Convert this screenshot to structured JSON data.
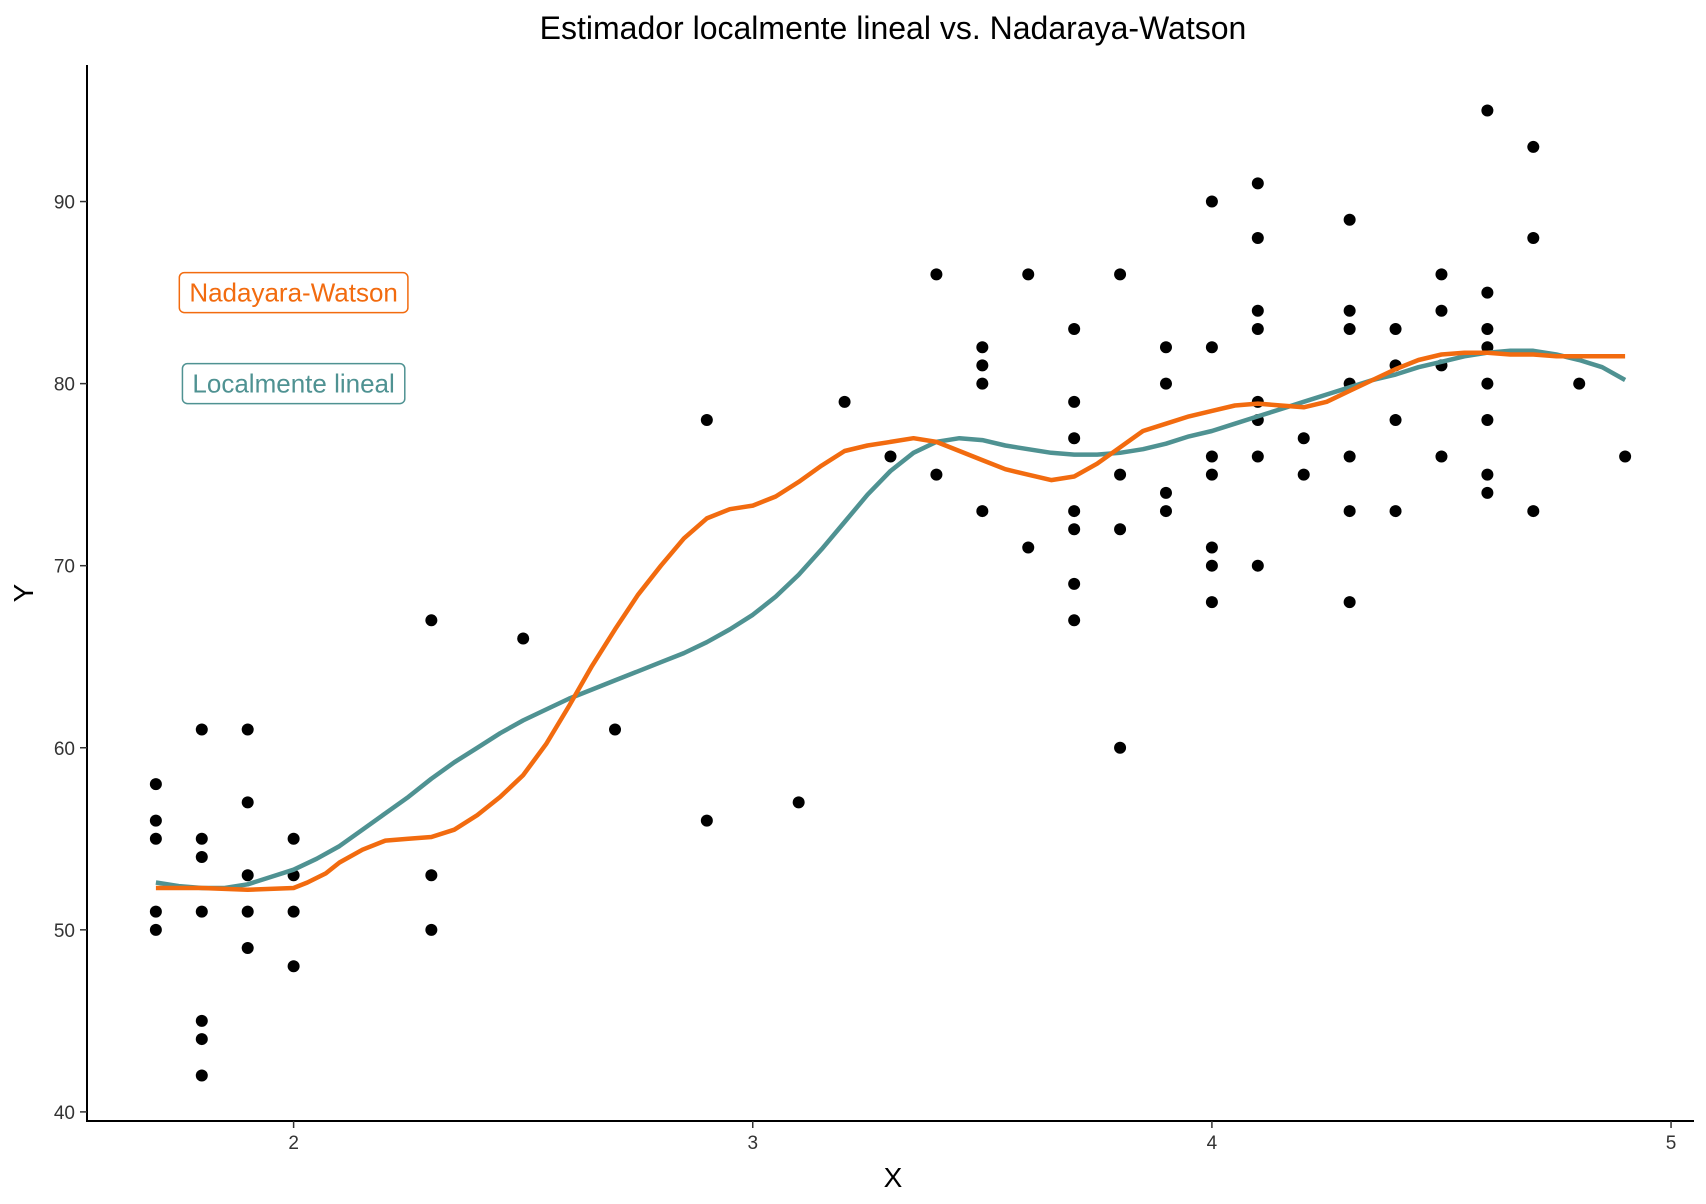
{
  "chart_data": {
    "type": "scatter",
    "title": "Estimador localmente lineal vs. Nadaraya-Watson",
    "xlabel": "X",
    "ylabel": "Y",
    "xlim": [
      1.55,
      5.05
    ],
    "ylim": [
      39.5,
      97.5
    ],
    "xticks": [
      2,
      3,
      4,
      5
    ],
    "yticks": [
      40,
      50,
      60,
      70,
      80,
      90
    ],
    "grid": false,
    "points": {
      "color": "#000000",
      "data": [
        [
          1.7,
          58
        ],
        [
          1.7,
          56
        ],
        [
          1.7,
          55
        ],
        [
          1.7,
          51
        ],
        [
          1.7,
          50
        ],
        [
          1.8,
          61
        ],
        [
          1.8,
          55
        ],
        [
          1.8,
          54
        ],
        [
          1.8,
          51
        ],
        [
          1.8,
          45
        ],
        [
          1.8,
          44
        ],
        [
          1.8,
          42
        ],
        [
          1.9,
          61
        ],
        [
          1.9,
          57
        ],
        [
          1.9,
          53
        ],
        [
          1.9,
          51
        ],
        [
          1.9,
          49
        ],
        [
          2.0,
          55
        ],
        [
          2.0,
          53
        ],
        [
          2.0,
          51
        ],
        [
          2.0,
          48
        ],
        [
          2.3,
          67
        ],
        [
          2.3,
          53
        ],
        [
          2.3,
          50
        ],
        [
          2.5,
          66
        ],
        [
          2.7,
          61
        ],
        [
          2.9,
          78
        ],
        [
          2.9,
          56
        ],
        [
          3.1,
          57
        ],
        [
          3.2,
          79
        ],
        [
          3.3,
          76
        ],
        [
          3.4,
          86
        ],
        [
          3.4,
          75
        ],
        [
          3.5,
          82
        ],
        [
          3.5,
          81
        ],
        [
          3.5,
          80
        ],
        [
          3.5,
          73
        ],
        [
          3.6,
          86
        ],
        [
          3.6,
          71
        ],
        [
          3.7,
          83
        ],
        [
          3.7,
          79
        ],
        [
          3.7,
          77
        ],
        [
          3.7,
          73
        ],
        [
          3.7,
          72
        ],
        [
          3.7,
          69
        ],
        [
          3.7,
          67
        ],
        [
          3.8,
          86
        ],
        [
          3.8,
          75
        ],
        [
          3.8,
          72
        ],
        [
          3.8,
          60
        ],
        [
          3.9,
          82
        ],
        [
          3.9,
          80
        ],
        [
          3.9,
          74
        ],
        [
          3.9,
          73
        ],
        [
          4.0,
          90
        ],
        [
          4.0,
          82
        ],
        [
          4.0,
          76
        ],
        [
          4.0,
          75
        ],
        [
          4.0,
          71
        ],
        [
          4.0,
          70
        ],
        [
          4.0,
          68
        ],
        [
          4.1,
          91
        ],
        [
          4.1,
          88
        ],
        [
          4.1,
          84
        ],
        [
          4.1,
          83
        ],
        [
          4.1,
          79
        ],
        [
          4.1,
          78
        ],
        [
          4.1,
          76
        ],
        [
          4.1,
          70
        ],
        [
          4.2,
          77
        ],
        [
          4.2,
          75
        ],
        [
          4.3,
          89
        ],
        [
          4.3,
          84
        ],
        [
          4.3,
          83
        ],
        [
          4.3,
          80
        ],
        [
          4.3,
          76
        ],
        [
          4.3,
          73
        ],
        [
          4.3,
          68
        ],
        [
          4.4,
          83
        ],
        [
          4.4,
          81
        ],
        [
          4.4,
          78
        ],
        [
          4.4,
          73
        ],
        [
          4.5,
          86
        ],
        [
          4.5,
          84
        ],
        [
          4.5,
          81
        ],
        [
          4.5,
          76
        ],
        [
          4.6,
          95
        ],
        [
          4.6,
          85
        ],
        [
          4.6,
          83
        ],
        [
          4.6,
          82
        ],
        [
          4.6,
          80
        ],
        [
          4.6,
          78
        ],
        [
          4.6,
          75
        ],
        [
          4.6,
          74
        ],
        [
          4.7,
          93
        ],
        [
          4.7,
          88
        ],
        [
          4.7,
          73
        ],
        [
          4.8,
          80
        ],
        [
          4.9,
          76
        ]
      ]
    },
    "series": [
      {
        "name": "Nadayara-Watson",
        "color": "#F26B0F",
        "x": [
          1.7,
          1.8,
          1.9,
          2.0,
          2.03,
          2.07,
          2.1,
          2.15,
          2.2,
          2.25,
          2.3,
          2.35,
          2.4,
          2.45,
          2.5,
          2.55,
          2.6,
          2.65,
          2.7,
          2.75,
          2.8,
          2.85,
          2.9,
          2.95,
          3.0,
          3.05,
          3.1,
          3.15,
          3.2,
          3.25,
          3.3,
          3.35,
          3.4,
          3.45,
          3.5,
          3.55,
          3.6,
          3.65,
          3.7,
          3.75,
          3.8,
          3.85,
          3.9,
          3.95,
          4.0,
          4.05,
          4.1,
          4.15,
          4.2,
          4.25,
          4.3,
          4.35,
          4.4,
          4.45,
          4.5,
          4.55,
          4.6,
          4.65,
          4.7,
          4.75,
          4.8,
          4.85,
          4.9
        ],
        "y": [
          52.3,
          52.3,
          52.2,
          52.3,
          52.6,
          53.1,
          53.7,
          54.4,
          54.9,
          55.0,
          55.1,
          55.5,
          56.3,
          57.3,
          58.5,
          60.2,
          62.3,
          64.5,
          66.5,
          68.4,
          70.0,
          71.5,
          72.6,
          73.1,
          73.3,
          73.8,
          74.6,
          75.5,
          76.3,
          76.6,
          76.8,
          77.0,
          76.8,
          76.3,
          75.8,
          75.3,
          75.0,
          74.7,
          74.9,
          75.6,
          76.5,
          77.4,
          77.8,
          78.2,
          78.5,
          78.8,
          78.9,
          78.8,
          78.7,
          79.0,
          79.6,
          80.2,
          80.8,
          81.3,
          81.6,
          81.7,
          81.7,
          81.6,
          81.6,
          81.5,
          81.5,
          81.5,
          81.5
        ]
      },
      {
        "name": "Localmente lineal",
        "color": "#4F9292",
        "x": [
          1.7,
          1.75,
          1.8,
          1.85,
          1.9,
          1.95,
          2.0,
          2.05,
          2.1,
          2.15,
          2.2,
          2.25,
          2.3,
          2.35,
          2.4,
          2.45,
          2.5,
          2.55,
          2.6,
          2.65,
          2.7,
          2.75,
          2.8,
          2.85,
          2.9,
          2.95,
          3.0,
          3.05,
          3.1,
          3.15,
          3.2,
          3.25,
          3.3,
          3.35,
          3.4,
          3.45,
          3.5,
          3.55,
          3.6,
          3.65,
          3.7,
          3.75,
          3.8,
          3.85,
          3.9,
          3.95,
          4.0,
          4.05,
          4.1,
          4.15,
          4.2,
          4.25,
          4.3,
          4.35,
          4.4,
          4.45,
          4.5,
          4.55,
          4.6,
          4.65,
          4.7,
          4.75,
          4.8,
          4.85,
          4.9
        ],
        "y": [
          52.6,
          52.4,
          52.3,
          52.3,
          52.5,
          52.9,
          53.3,
          53.9,
          54.6,
          55.5,
          56.4,
          57.3,
          58.3,
          59.2,
          60.0,
          60.8,
          61.5,
          62.1,
          62.7,
          63.2,
          63.7,
          64.2,
          64.7,
          65.2,
          65.8,
          66.5,
          67.3,
          68.3,
          69.5,
          70.9,
          72.4,
          73.9,
          75.2,
          76.2,
          76.8,
          77.0,
          76.9,
          76.6,
          76.4,
          76.2,
          76.1,
          76.1,
          76.2,
          76.4,
          76.7,
          77.1,
          77.4,
          77.8,
          78.2,
          78.6,
          79.0,
          79.4,
          79.8,
          80.2,
          80.5,
          80.9,
          81.2,
          81.5,
          81.7,
          81.8,
          81.8,
          81.6,
          81.3,
          80.9,
          80.2
        ]
      }
    ],
    "annotations": [
      {
        "id": "nw",
        "text": "Nadayara-Watson",
        "x": 2.0,
        "y": 85,
        "color": "#F26B0F"
      },
      {
        "id": "ll",
        "text": "Localmente lineal",
        "x": 2.0,
        "y": 80,
        "color": "#4F9292"
      }
    ]
  }
}
